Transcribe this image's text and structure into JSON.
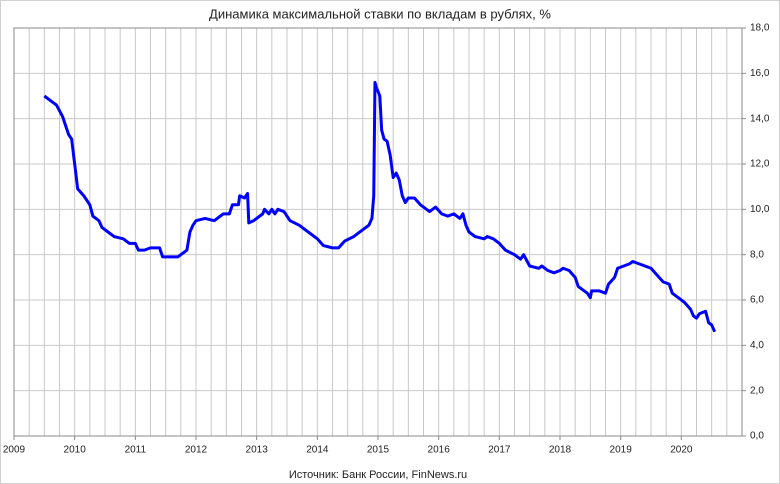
{
  "chart_data": {
    "type": "line",
    "title": "Динамика максимальной ставки по вкладам в рублях, %",
    "source": "Источник: Банк России, FinNews.ru",
    "x": [
      2009.5,
      2009.6,
      2009.7,
      2009.8,
      2009.9,
      2009.95,
      2010.0,
      2010.05,
      2010.15,
      2010.25,
      2010.3,
      2010.4,
      2010.45,
      2010.55,
      2010.65,
      2010.8,
      2010.9,
      2011.0,
      2011.05,
      2011.15,
      2011.25,
      2011.4,
      2011.45,
      2011.6,
      2011.7,
      2011.8,
      2011.85,
      2011.9,
      2011.95,
      2012.0,
      2012.15,
      2012.3,
      2012.45,
      2012.55,
      2012.6,
      2012.7,
      2012.72,
      2012.8,
      2012.85,
      2012.87,
      2012.95,
      2013.05,
      2013.1,
      2013.13,
      2013.2,
      2013.25,
      2013.3,
      2013.35,
      2013.45,
      2013.55,
      2013.7,
      2013.85,
      2014.0,
      2014.1,
      2014.25,
      2014.35,
      2014.45,
      2014.6,
      2014.75,
      2014.85,
      2014.9,
      2014.93,
      2014.95,
      2014.97,
      2015.03,
      2015.06,
      2015.1,
      2015.15,
      2015.2,
      2015.25,
      2015.3,
      2015.35,
      2015.4,
      2015.45,
      2015.5,
      2015.6,
      2015.7,
      2015.8,
      2015.85,
      2015.95,
      2016.05,
      2016.15,
      2016.25,
      2016.35,
      2016.4,
      2016.45,
      2016.5,
      2016.6,
      2016.75,
      2016.8,
      2016.9,
      2017.0,
      2017.1,
      2017.25,
      2017.35,
      2017.4,
      2017.5,
      2017.65,
      2017.7,
      2017.8,
      2017.9,
      2018.0,
      2018.05,
      2018.15,
      2018.25,
      2018.3,
      2018.35,
      2018.45,
      2018.5,
      2018.52,
      2018.65,
      2018.75,
      2018.8,
      2018.9,
      2018.95,
      2019.05,
      2019.15,
      2019.2,
      2019.3,
      2019.4,
      2019.5,
      2019.6,
      2019.7,
      2019.8,
      2019.85,
      2019.95,
      2020.05,
      2020.15,
      2020.2,
      2020.25,
      2020.3,
      2020.4,
      2020.45,
      2020.5,
      2020.55
    ],
    "series": [
      {
        "color": "#0000ff",
        "values": [
          15.0,
          14.8,
          14.6,
          14.1,
          13.3,
          13.1,
          12.0,
          10.9,
          10.6,
          10.2,
          9.7,
          9.5,
          9.2,
          9.0,
          8.8,
          8.7,
          8.5,
          8.5,
          8.2,
          8.2,
          8.3,
          8.3,
          7.9,
          7.9,
          7.9,
          8.1,
          8.2,
          9.0,
          9.3,
          9.5,
          9.6,
          9.5,
          9.8,
          9.8,
          10.2,
          10.2,
          10.6,
          10.5,
          10.7,
          9.4,
          9.5,
          9.7,
          9.8,
          10.0,
          9.8,
          10.0,
          9.8,
          10.0,
          9.9,
          9.5,
          9.3,
          9.0,
          8.7,
          8.4,
          8.3,
          8.3,
          8.6,
          8.8,
          9.1,
          9.3,
          9.6,
          10.6,
          15.6,
          15.4,
          15.0,
          13.5,
          13.1,
          13.0,
          12.4,
          11.4,
          11.6,
          11.3,
          10.6,
          10.3,
          10.5,
          10.5,
          10.2,
          10.0,
          9.9,
          10.1,
          9.8,
          9.7,
          9.8,
          9.6,
          9.8,
          9.3,
          9.0,
          8.8,
          8.7,
          8.8,
          8.7,
          8.5,
          8.2,
          8.0,
          7.8,
          8.0,
          7.5,
          7.4,
          7.5,
          7.3,
          7.2,
          7.3,
          7.4,
          7.3,
          7.0,
          6.6,
          6.5,
          6.3,
          6.1,
          6.4,
          6.4,
          6.3,
          6.7,
          7.0,
          7.4,
          7.5,
          7.6,
          7.7,
          7.6,
          7.5,
          7.4,
          7.1,
          6.8,
          6.7,
          6.3,
          6.1,
          5.9,
          5.6,
          5.3,
          5.2,
          5.4,
          5.5,
          5.0,
          4.9,
          4.6
        ]
      }
    ],
    "xlim": [
      2009,
      2021
    ],
    "xticks": [
      2009,
      2010,
      2011,
      2012,
      2013,
      2014,
      2015,
      2016,
      2017,
      2018,
      2019,
      2020
    ],
    "ylim": [
      0,
      18
    ],
    "yticks": [
      {
        "value": 0,
        "label": "0,0"
      },
      {
        "value": 2,
        "label": "2,0"
      },
      {
        "value": 4,
        "label": "4,0"
      },
      {
        "value": 6,
        "label": "6,0"
      },
      {
        "value": 8,
        "label": "8,0"
      },
      {
        "value": 10,
        "label": "10,0"
      },
      {
        "value": 12,
        "label": "12,0"
      },
      {
        "value": 14,
        "label": "14,0"
      },
      {
        "value": 16,
        "label": "16,0"
      },
      {
        "value": 18,
        "label": "18,0"
      }
    ],
    "grid": true
  }
}
